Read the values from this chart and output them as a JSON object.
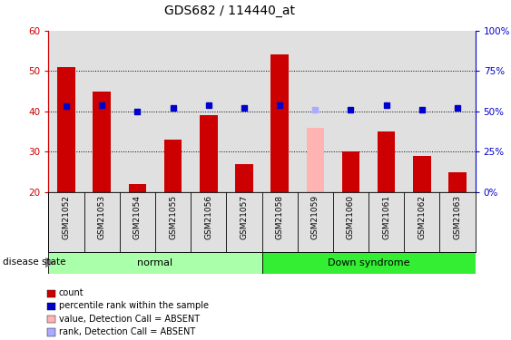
{
  "title": "GDS682 / 114440_at",
  "samples": [
    "GSM21052",
    "GSM21053",
    "GSM21054",
    "GSM21055",
    "GSM21056",
    "GSM21057",
    "GSM21058",
    "GSM21059",
    "GSM21060",
    "GSM21061",
    "GSM21062",
    "GSM21063"
  ],
  "bar_values": [
    51,
    45,
    22,
    33,
    39,
    27,
    54,
    36,
    30,
    35,
    29,
    25
  ],
  "bar_colors": [
    "#cc0000",
    "#cc0000",
    "#cc0000",
    "#cc0000",
    "#cc0000",
    "#cc0000",
    "#cc0000",
    "#ffb3b3",
    "#cc0000",
    "#cc0000",
    "#cc0000",
    "#cc0000"
  ],
  "rank_values": [
    53,
    54,
    50,
    52,
    54,
    52,
    54,
    51,
    51,
    54,
    51,
    52
  ],
  "rank_colors": [
    "#0000cc",
    "#0000cc",
    "#0000cc",
    "#0000cc",
    "#0000cc",
    "#0000cc",
    "#0000cc",
    "#aaaaff",
    "#0000cc",
    "#0000cc",
    "#0000cc",
    "#0000cc"
  ],
  "ylim_left": [
    20,
    60
  ],
  "ylim_right": [
    0,
    100
  ],
  "yticks_left": [
    20,
    30,
    40,
    50,
    60
  ],
  "yticks_right": [
    0,
    25,
    50,
    75,
    100
  ],
  "ytick_labels_right": [
    "0%",
    "25%",
    "50%",
    "75%",
    "100%"
  ],
  "groups": [
    {
      "label": "normal",
      "start": 0,
      "end": 5,
      "color": "#aaffaa"
    },
    {
      "label": "Down syndrome",
      "start": 6,
      "end": 11,
      "color": "#33ee33"
    }
  ],
  "disease_state_label": "disease state",
  "plot_bg_color": "#e0e0e0",
  "bar_width": 0.5,
  "dotted_grid_values": [
    30,
    40,
    50
  ],
  "legend_items": [
    {
      "label": "count",
      "color": "#cc0000"
    },
    {
      "label": "percentile rank within the sample",
      "color": "#0000cc"
    },
    {
      "label": "value, Detection Call = ABSENT",
      "color": "#ffb3b3"
    },
    {
      "label": "rank, Detection Call = ABSENT",
      "color": "#aaaaff"
    }
  ]
}
